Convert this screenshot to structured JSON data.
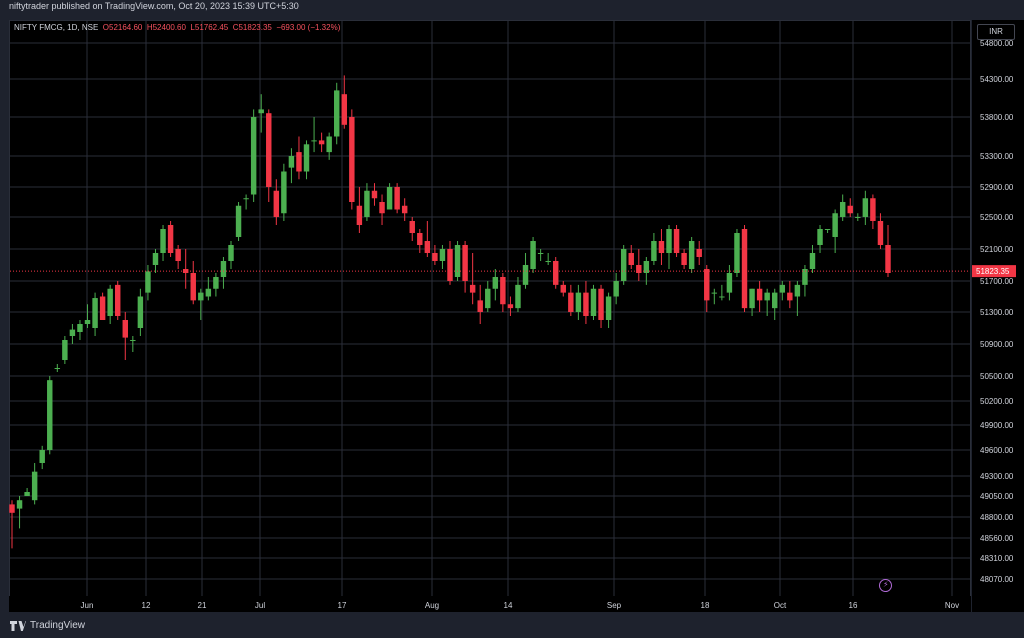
{
  "header": {
    "published": "niftytrader published on TradingView.com, Oct 20, 2023 15:39 UTC+5:30"
  },
  "legend": {
    "symbol": "NIFTY FMCG, 1D, NSE",
    "open": "O52164.60",
    "high": "H52400.60",
    "low": "L51762.45",
    "close": "C51823.35",
    "change": "−693.00 (−1.32%)"
  },
  "currency": "INR",
  "footer": {
    "brand": "TradingView"
  },
  "colors": {
    "up": "#4caf50",
    "down": "#f23645",
    "grid": "#2a2e39",
    "last_price": "#f23645"
  },
  "chart_data": {
    "type": "candlestick",
    "title": "NIFTY FMCG, 1D, NSE",
    "ylim": [
      47900,
      54750
    ],
    "y_ticks": [
      "54800.00",
      "54300.00",
      "53800.00",
      "53300.00",
      "52900.00",
      "52500.00",
      "52100.00",
      "51700.00",
      "51300.00",
      "50900.00",
      "50500.00",
      "50200.00",
      "49900.00",
      "49600.00",
      "49300.00",
      "49050.00",
      "48800.00",
      "48560.00",
      "48310.00",
      "48070.00"
    ],
    "last_price": "51823.35",
    "x_ticks": [
      "Jun",
      "12",
      "21",
      "Jul",
      "17",
      "Aug",
      "14",
      "Sep",
      "18",
      "Oct",
      "16",
      "Nov"
    ],
    "grid": true,
    "candles": [
      [
        48950,
        49000,
        48430,
        48850
      ],
      [
        48900,
        49050,
        48670,
        49000
      ],
      [
        49050,
        49150,
        49050,
        49100
      ],
      [
        49000,
        49450,
        48950,
        49350
      ],
      [
        49450,
        49650,
        49380,
        49600
      ],
      [
        49600,
        50500,
        49550,
        50450
      ],
      [
        50600,
        50650,
        50550,
        50600
      ],
      [
        50700,
        51000,
        50650,
        50950
      ],
      [
        51000,
        51150,
        50900,
        51080
      ],
      [
        51050,
        51200,
        50950,
        51150
      ],
      [
        51150,
        51400,
        51100,
        51200
      ],
      [
        51100,
        51550,
        51000,
        51480
      ],
      [
        51500,
        51550,
        51200,
        51200
      ],
      [
        51250,
        51650,
        51150,
        51600
      ],
      [
        51650,
        51700,
        51200,
        51250
      ],
      [
        51200,
        51300,
        50700,
        50980
      ],
      [
        50950,
        51000,
        50800,
        50950
      ],
      [
        51100,
        51600,
        51000,
        51500
      ],
      [
        51550,
        51900,
        51450,
        51820
      ],
      [
        51900,
        52100,
        51800,
        52050
      ],
      [
        52050,
        52400,
        51950,
        52350
      ],
      [
        52400,
        52450,
        52000,
        52050
      ],
      [
        52100,
        52150,
        51850,
        51950
      ],
      [
        51850,
        52100,
        51600,
        51800
      ],
      [
        51800,
        51950,
        51400,
        51450
      ],
      [
        51450,
        51600,
        51200,
        51550
      ],
      [
        51500,
        51750,
        51450,
        51600
      ],
      [
        51600,
        51800,
        51500,
        51750
      ],
      [
        51750,
        52000,
        51600,
        51950
      ],
      [
        51950,
        52200,
        51850,
        52150
      ],
      [
        52250,
        52700,
        52200,
        52650
      ],
      [
        52750,
        52800,
        52600,
        52750
      ],
      [
        52800,
        53900,
        52700,
        53800
      ],
      [
        53850,
        54100,
        53600,
        53900
      ],
      [
        53850,
        53900,
        52700,
        52900
      ],
      [
        52850,
        53000,
        52400,
        52500
      ],
      [
        52550,
        53200,
        52450,
        53100
      ],
      [
        53150,
        53400,
        52950,
        53300
      ],
      [
        53350,
        53550,
        53000,
        53100
      ],
      [
        53100,
        53500,
        53000,
        53450
      ],
      [
        53500,
        53800,
        53350,
        53500
      ],
      [
        53500,
        53600,
        53350,
        53450
      ],
      [
        53350,
        53600,
        53250,
        53550
      ],
      [
        53550,
        54250,
        53450,
        54150
      ],
      [
        54100,
        54350,
        53650,
        53700
      ],
      [
        53800,
        53900,
        52600,
        52700
      ],
      [
        52650,
        52900,
        52300,
        52400
      ],
      [
        52500,
        52950,
        52450,
        52850
      ],
      [
        52850,
        52950,
        52650,
        52750
      ],
      [
        52700,
        52800,
        52400,
        52550
      ],
      [
        52600,
        52950,
        52600,
        52900
      ],
      [
        52900,
        52950,
        52550,
        52600
      ],
      [
        52650,
        52750,
        52450,
        52550
      ],
      [
        52450,
        52500,
        52200,
        52300
      ],
      [
        52300,
        52350,
        52050,
        52150
      ],
      [
        52200,
        52450,
        52000,
        52050
      ],
      [
        52050,
        52150,
        51900,
        51950
      ],
      [
        51950,
        52150,
        51850,
        52100
      ],
      [
        52100,
        52200,
        51650,
        51700
      ],
      [
        51750,
        52200,
        51700,
        52150
      ],
      [
        52150,
        52200,
        51550,
        51700
      ],
      [
        51650,
        52050,
        51400,
        51550
      ],
      [
        51450,
        51650,
        51150,
        51300
      ],
      [
        51350,
        51700,
        51300,
        51600
      ],
      [
        51600,
        51850,
        51450,
        51750
      ],
      [
        51750,
        51800,
        51300,
        51400
      ],
      [
        51400,
        51500,
        51250,
        51350
      ],
      [
        51350,
        51750,
        51300,
        51650
      ],
      [
        51650,
        52050,
        51600,
        51900
      ],
      [
        51850,
        52250,
        51800,
        52200
      ],
      [
        52050,
        52100,
        51950,
        52050
      ],
      [
        51950,
        52050,
        51900,
        51950
      ],
      [
        51950,
        52000,
        51600,
        51650
      ],
      [
        51650,
        51700,
        51500,
        51550
      ],
      [
        51550,
        51650,
        51250,
        51300
      ],
      [
        51300,
        51650,
        51200,
        51550
      ],
      [
        51550,
        51700,
        51150,
        51250
      ],
      [
        51250,
        51650,
        51200,
        51600
      ],
      [
        51600,
        51650,
        51100,
        51200
      ],
      [
        51200,
        51550,
        51100,
        51500
      ],
      [
        51500,
        51800,
        51400,
        51700
      ],
      [
        51700,
        52150,
        51650,
        52100
      ],
      [
        52050,
        52150,
        51850,
        51900
      ],
      [
        51900,
        52100,
        51700,
        51800
      ],
      [
        51800,
        52000,
        51650,
        51950
      ],
      [
        51950,
        52300,
        51900,
        52200
      ],
      [
        52200,
        52350,
        51900,
        52050
      ],
      [
        52050,
        52400,
        51850,
        52350
      ],
      [
        52350,
        52400,
        52000,
        52050
      ],
      [
        52050,
        52100,
        51850,
        51900
      ],
      [
        51850,
        52250,
        51800,
        52200
      ],
      [
        52100,
        52200,
        51900,
        52000
      ],
      [
        51850,
        51900,
        51300,
        51450
      ],
      [
        51550,
        51600,
        51400,
        51550
      ],
      [
        51500,
        51650,
        51450,
        51500
      ],
      [
        51550,
        51900,
        51450,
        51800
      ],
      [
        51800,
        52350,
        51750,
        52300
      ],
      [
        52350,
        52400,
        51300,
        51350
      ],
      [
        51350,
        51600,
        51250,
        51600
      ],
      [
        51600,
        51700,
        51300,
        51450
      ],
      [
        51450,
        51600,
        51250,
        51550
      ],
      [
        51350,
        51600,
        51200,
        51550
      ],
      [
        51550,
        51700,
        51450,
        51650
      ],
      [
        51550,
        51700,
        51350,
        51450
      ],
      [
        51500,
        51700,
        51250,
        51650
      ],
      [
        51650,
        51900,
        51500,
        51850
      ],
      [
        51850,
        52150,
        51800,
        52050
      ],
      [
        52150,
        52400,
        52050,
        52350
      ],
      [
        52350,
        52350,
        52300,
        52350
      ],
      [
        52250,
        52600,
        52050,
        52550
      ],
      [
        52500,
        52800,
        52450,
        52700
      ],
      [
        52650,
        52750,
        52500,
        52550
      ],
      [
        52500,
        52550,
        52450,
        52500
      ],
      [
        52500,
        52850,
        52400,
        52750
      ],
      [
        52750,
        52800,
        52350,
        52450
      ],
      [
        52450,
        52550,
        52100,
        52150
      ],
      [
        52150,
        52400,
        51750,
        51800
      ]
    ]
  }
}
